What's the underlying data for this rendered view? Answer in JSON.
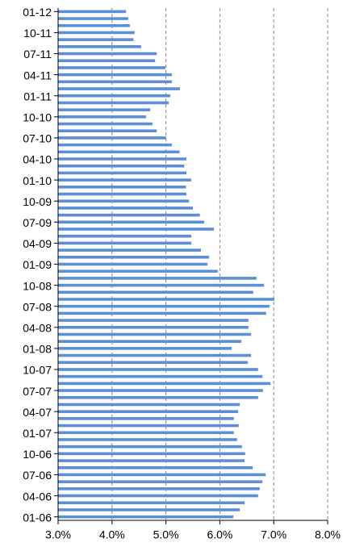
{
  "chart_data": {
    "type": "bar",
    "orientation": "horizontal",
    "categories": [
      "01-12",
      null,
      null,
      "10-11",
      null,
      null,
      "07-11",
      null,
      null,
      "04-11",
      null,
      null,
      "01-11",
      null,
      null,
      "10-10",
      null,
      null,
      "07-10",
      null,
      null,
      "04-10",
      null,
      null,
      "01-10",
      null,
      null,
      "10-09",
      null,
      null,
      "07-09",
      null,
      null,
      "04-09",
      null,
      null,
      "01-09",
      null,
      null,
      "10-08",
      null,
      null,
      "07-08",
      null,
      null,
      "04-08",
      null,
      null,
      "01-08",
      null,
      null,
      "10-07",
      null,
      null,
      "07-07",
      null,
      null,
      "04-07",
      null,
      null,
      "01-07",
      null,
      null,
      "10-06",
      null,
      null,
      "07-06",
      null,
      null,
      "04-06",
      null,
      null,
      "01-06"
    ],
    "values": [
      4.26,
      4.3,
      4.33,
      4.42,
      4.4,
      4.54,
      4.83,
      4.8,
      4.99,
      5.11,
      5.11,
      5.26,
      5.08,
      5.05,
      4.71,
      4.63,
      4.75,
      4.83,
      5.0,
      5.11,
      5.25,
      5.38,
      5.34,
      5.38,
      5.47,
      5.37,
      5.38,
      5.43,
      5.5,
      5.63,
      5.71,
      5.89,
      5.47,
      5.47,
      5.65,
      5.8,
      5.77,
      5.96,
      6.68,
      6.82,
      6.62,
      7.01,
      6.92,
      6.86,
      6.53,
      6.53,
      6.58,
      6.4,
      6.22,
      6.58,
      6.52,
      6.71,
      6.79,
      6.94,
      6.8,
      6.71,
      6.37,
      6.34,
      6.26,
      6.35,
      6.26,
      6.32,
      6.41,
      6.47,
      6.46,
      6.61,
      6.85,
      6.79,
      6.74,
      6.71,
      6.46,
      6.37,
      6.25
    ],
    "color": "#5b8fd6",
    "xlim": [
      3,
      8
    ],
    "xticks": [
      {
        "value": 3,
        "label": "3.0%"
      },
      {
        "value": 4,
        "label": "4.0%"
      },
      {
        "value": 5,
        "label": "5.0%"
      },
      {
        "value": 6,
        "label": "6.0%"
      },
      {
        "value": 7,
        "label": "7.0%"
      },
      {
        "value": 8,
        "label": "8.0%"
      }
    ],
    "grid": true
  }
}
